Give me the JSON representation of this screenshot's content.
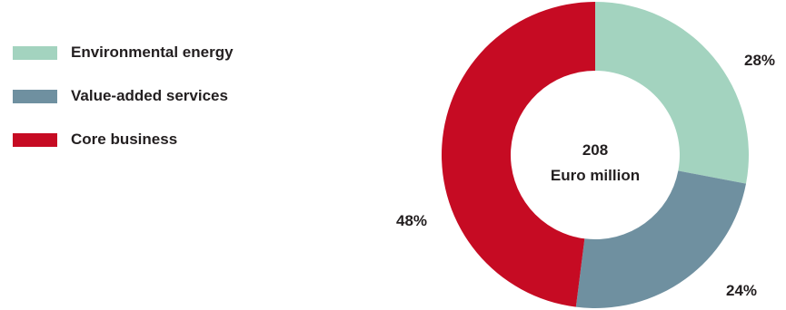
{
  "chart_data": {
    "type": "pie",
    "center_value": "208",
    "center_unit": "Euro million",
    "legend_position": "left",
    "categories": [
      "Environmental energy",
      "Value-added services",
      "Core business"
    ],
    "values": [
      28,
      24,
      48
    ],
    "value_labels": [
      "28%",
      "24%",
      "48%"
    ],
    "colors": [
      "#a3d3bf",
      "#6f90a0",
      "#c60b23"
    ]
  }
}
